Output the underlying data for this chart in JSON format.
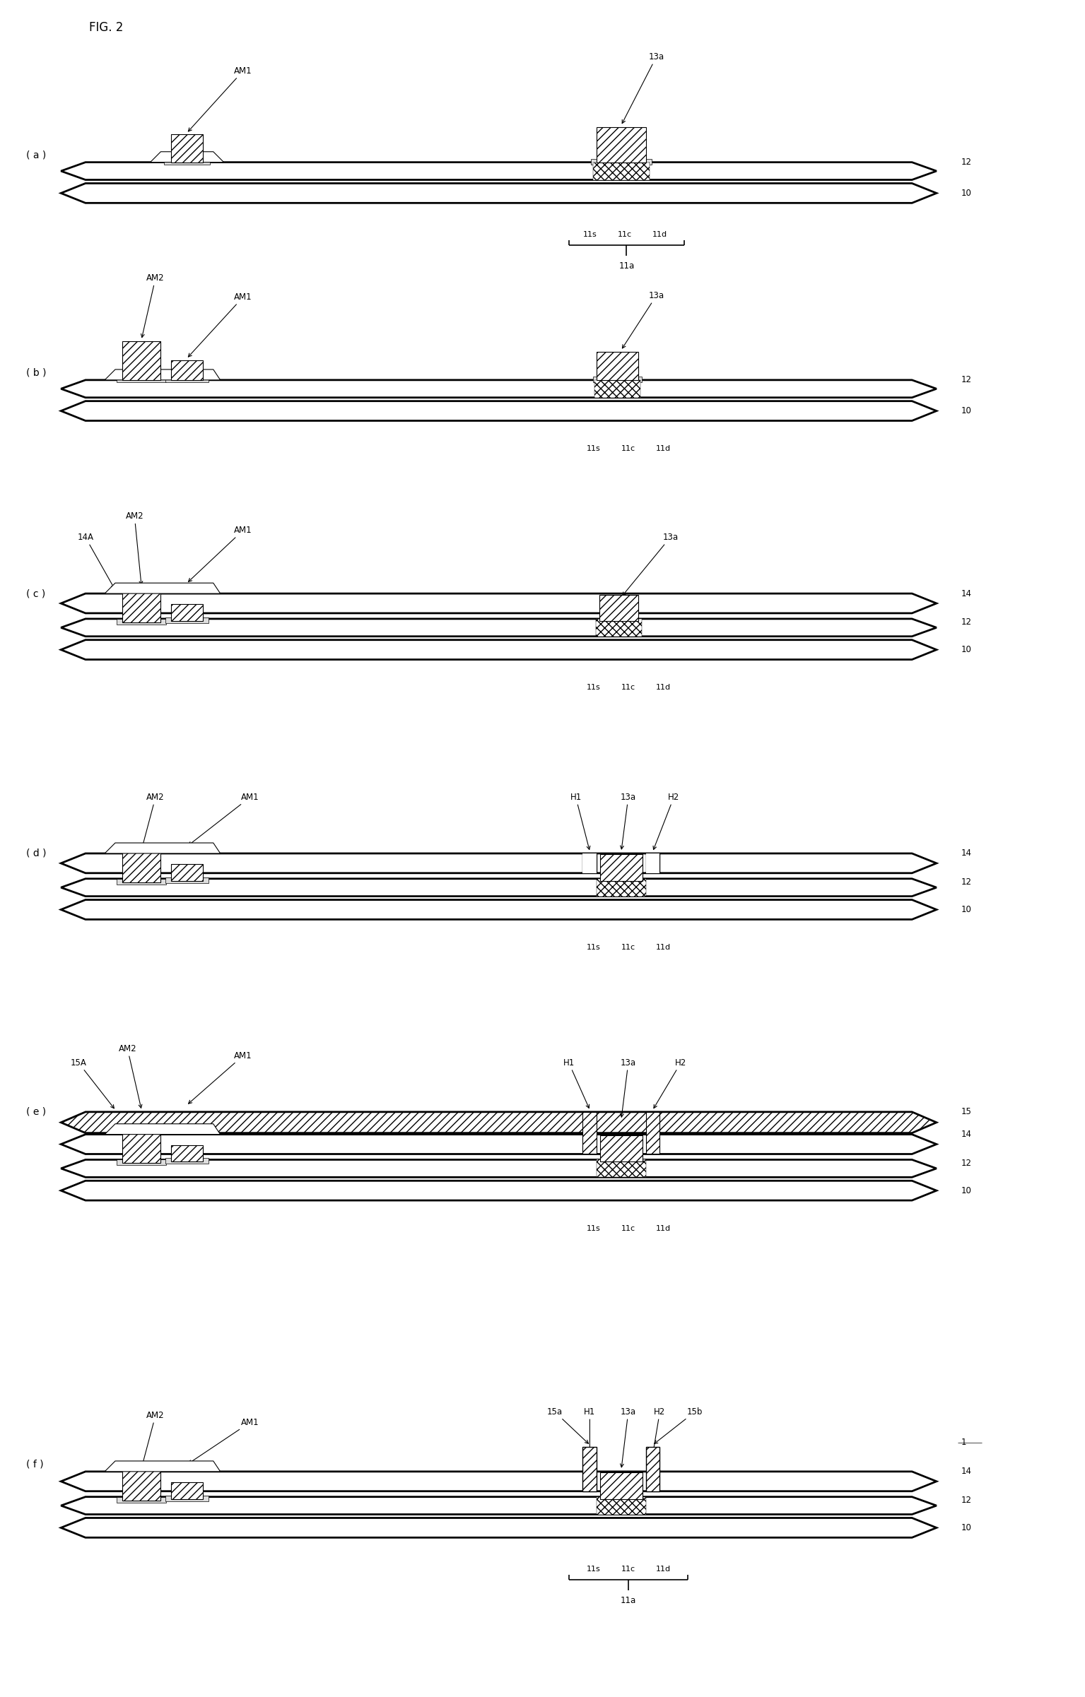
{
  "title": "FIG. 2",
  "bg": "#ffffff",
  "panels": [
    "(a)",
    "(b)",
    "(c)",
    "(d)",
    "(e)",
    "(f)"
  ],
  "lw_thick": 2.0,
  "lw_thin": 1.2,
  "lw_med": 1.5
}
